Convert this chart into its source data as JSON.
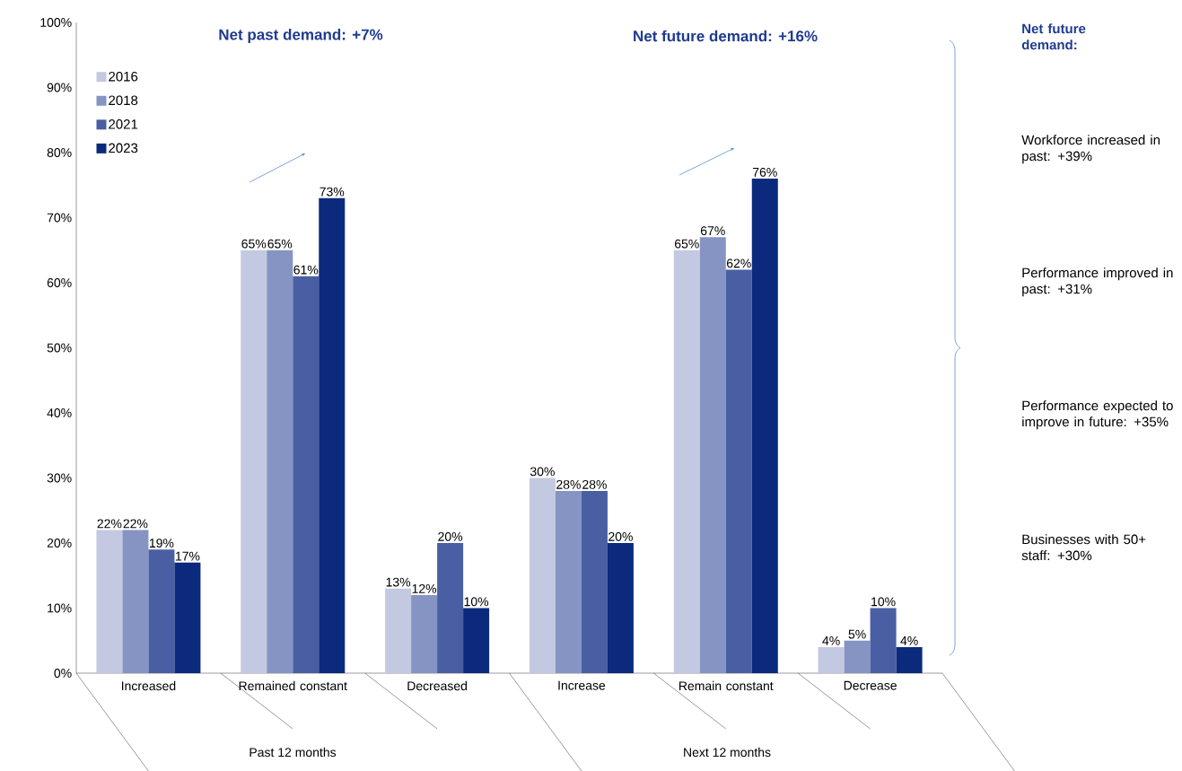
{
  "chart_data": {
    "type": "bar",
    "categories": [
      "Increased",
      "Remained constant",
      "Decreased",
      "Increase",
      "Remain constant",
      "Decrease"
    ],
    "series": [
      {
        "name": "2016",
        "color": "#c3c9e0",
        "values": [
          22,
          65,
          13,
          30,
          65,
          4
        ],
        "value_labels": [
          "22%",
          "65%",
          "13%",
          "30%",
          "65%",
          "4%"
        ]
      },
      {
        "name": "2018",
        "color": "#8594c2",
        "values": [
          22,
          65,
          12,
          28,
          67,
          5
        ],
        "value_labels": [
          "22%",
          "65%",
          "12%",
          "28%",
          "67%",
          "5%"
        ]
      },
      {
        "name": "2021",
        "color": "#4a5fa3",
        "values": [
          19,
          61,
          20,
          28,
          62,
          10
        ],
        "value_labels": [
          "19%",
          "61%",
          "20%",
          "28%",
          "62%",
          "10%"
        ]
      },
      {
        "name": "2023",
        "color": "#0b2a7e",
        "values": [
          17,
          73,
          10,
          20,
          76,
          4
        ],
        "value_labels": [
          "17%",
          "73%",
          "10%",
          "20%",
          "76%",
          "4%"
        ]
      }
    ],
    "ylim": [
      0,
      100
    ],
    "yticks": [
      {
        "value": 0,
        "label": "0%"
      },
      {
        "value": 10,
        "label": "10%"
      },
      {
        "value": 20,
        "label": "20%"
      },
      {
        "value": 30,
        "label": "30%"
      },
      {
        "value": 40,
        "label": "40%"
      },
      {
        "value": 50,
        "label": "50%"
      },
      {
        "value": 60,
        "label": "60%"
      },
      {
        "value": 70,
        "label": "70%"
      },
      {
        "value": 80,
        "label": "80%"
      },
      {
        "value": 90,
        "label": "90%"
      },
      {
        "value": 100,
        "label": "100%"
      }
    ],
    "legend": "top left",
    "grid": false,
    "annotations": [
      "Net past demand: +7%",
      "Net future demand: +16%",
      "Net future demand:",
      "Workforce increased in past: +39%",
      "Performance improved in past: +31%",
      "Performance expected to improve in future: +35%",
      "Businesses with 50+ staff: +30%",
      "Past 12 months",
      "Next 12 months"
    ]
  }
}
